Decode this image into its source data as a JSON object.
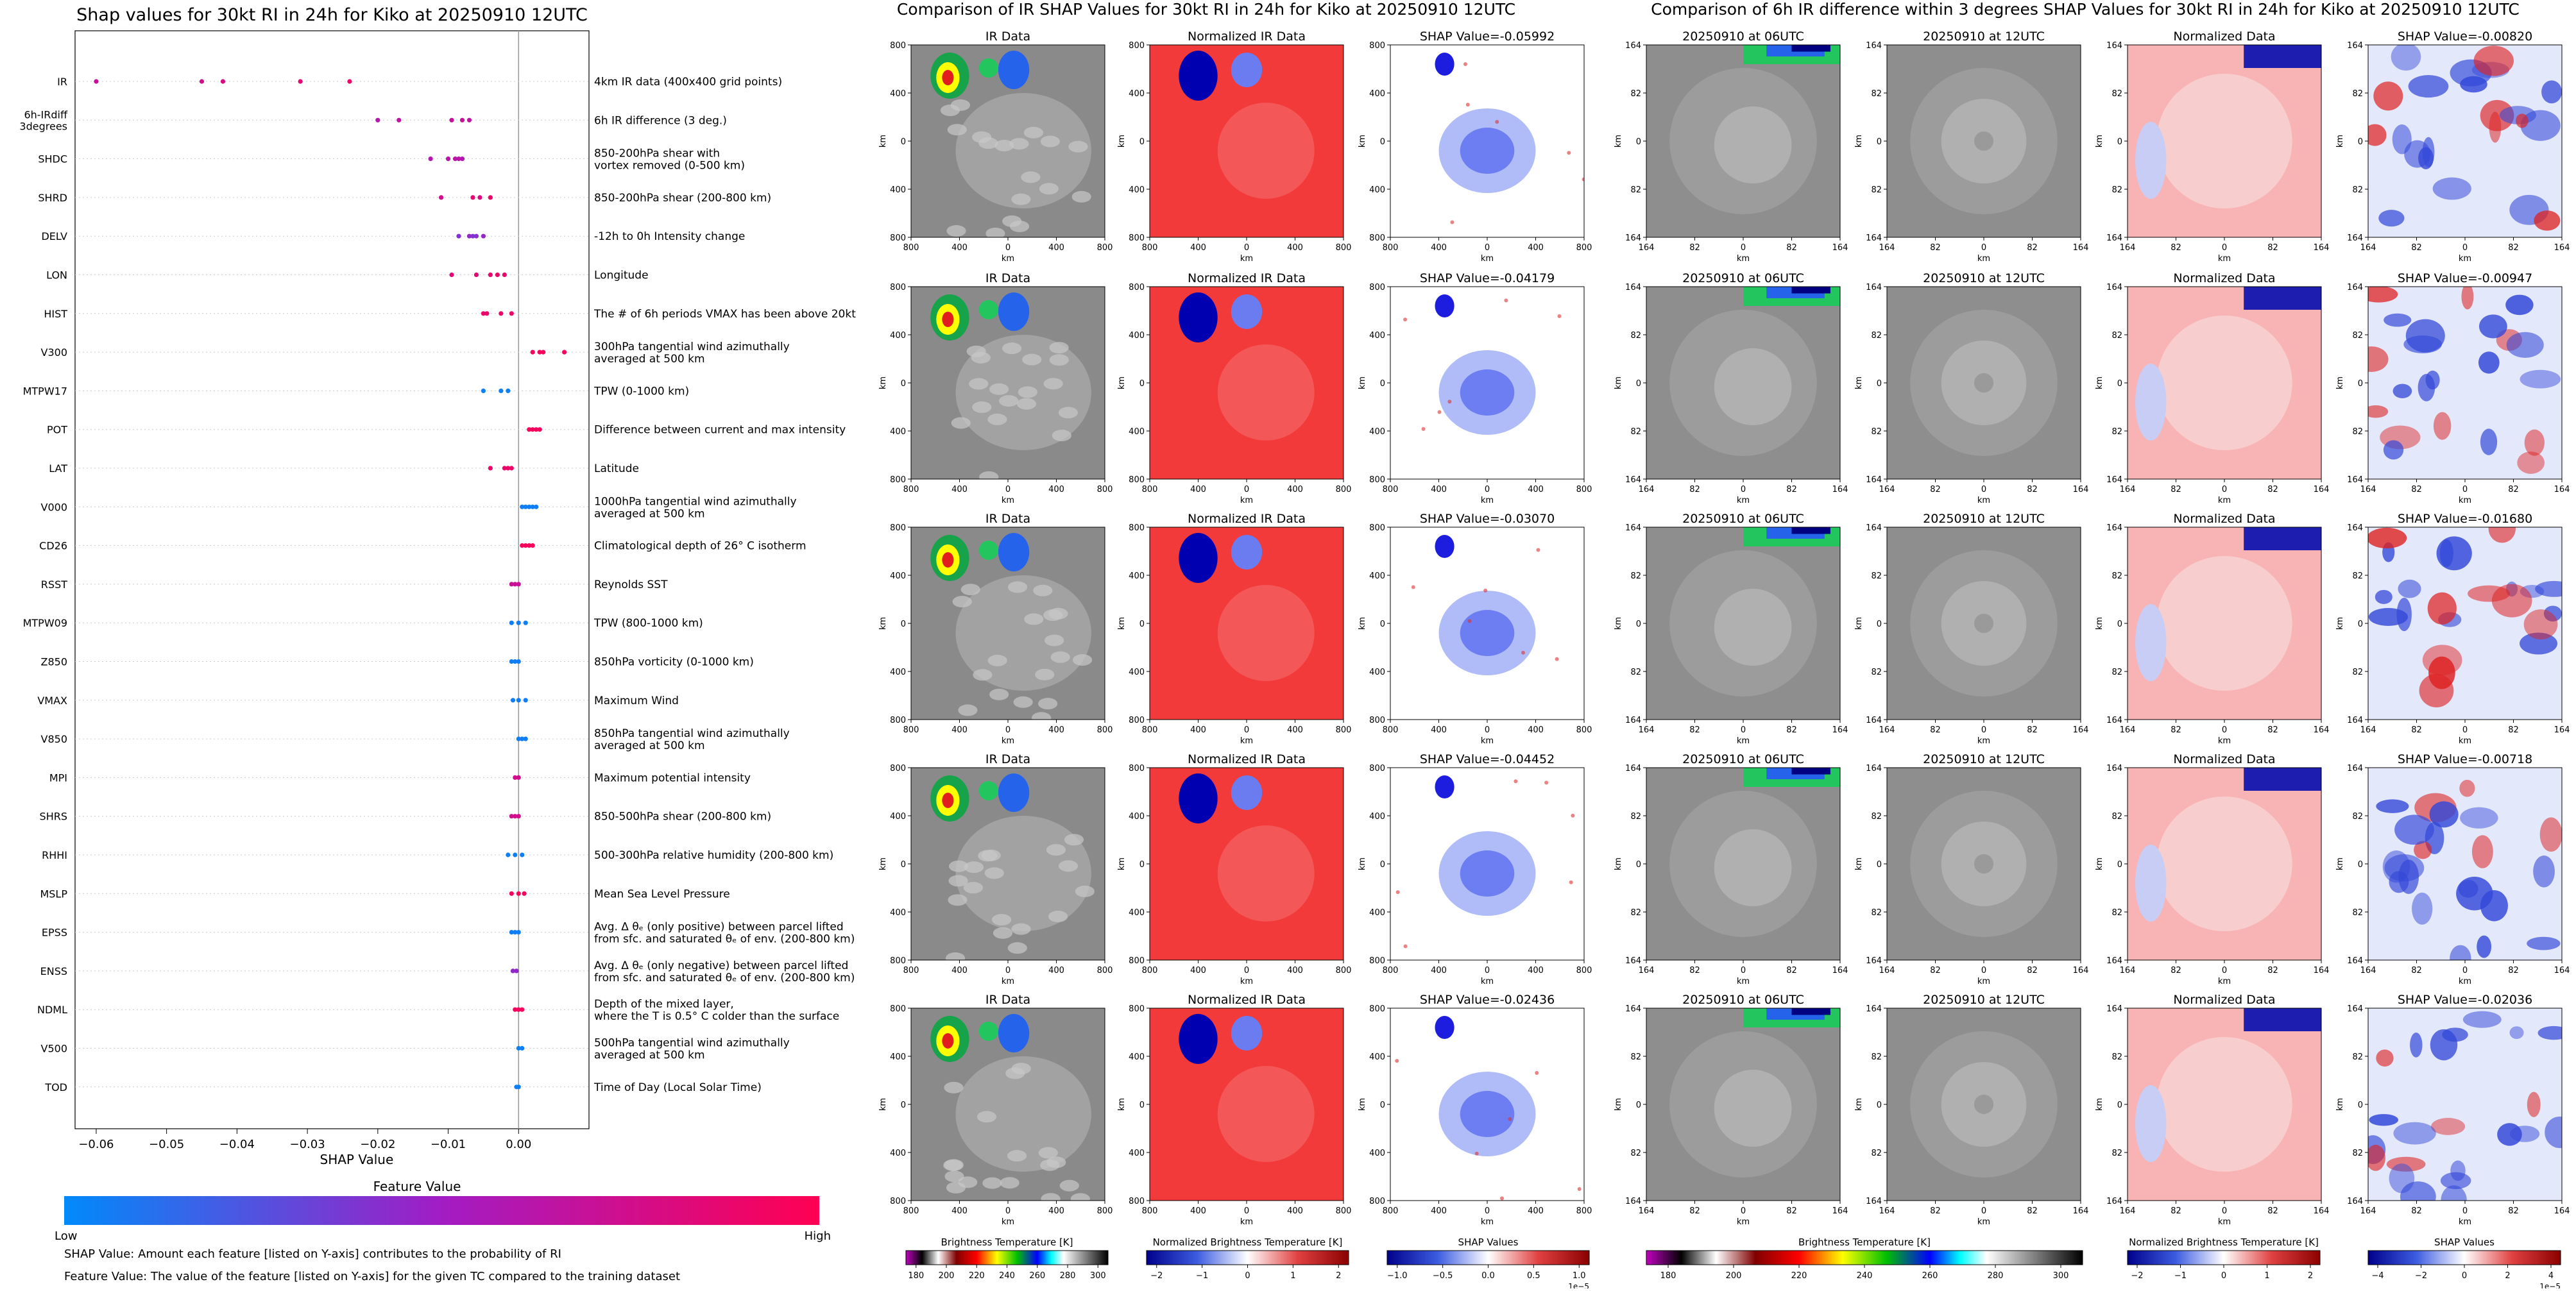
{
  "beeswarm": {
    "title": "Shap values for 30kt RI in 24h for Kiko at 20250910 12UTC",
    "xlabel": "SHAP Value",
    "xticks": [
      "−0.06",
      "−0.05",
      "−0.04",
      "−0.03",
      "−0.02",
      "−0.01",
      "0.00"
    ],
    "colorbar_title": "Feature Value",
    "colorbar_low": "Low",
    "colorbar_high": "High",
    "note1": "SHAP Value: Amount each feature [listed on Y-axis] contributes to the probability of RI",
    "note2": "Feature Value: The value of the feature [listed on Y-axis] for the given TC compared to the training dataset"
  },
  "chart_data": [
    {
      "type": "scatter",
      "title": "Shap values for 30kt RI in 24h for Kiko at 20250910 12UTC",
      "xlabel": "SHAP Value",
      "ylabel": "",
      "xlim": [
        -0.063,
        0.01
      ],
      "grid": false,
      "features": [
        {
          "label": [
            "IR"
          ],
          "desc": [
            "4km IR data (400x400 grid points)"
          ],
          "values": [
            -0.06,
            -0.045,
            -0.042,
            -0.031,
            -0.024
          ],
          "level": [
            0.7,
            0.75,
            0.8,
            0.85,
            0.9
          ]
        },
        {
          "label": [
            "6h-IRdiff",
            "3degrees"
          ],
          "desc": [
            "6h IR difference (3 deg.)"
          ],
          "values": [
            -0.02,
            -0.017,
            -0.0095,
            -0.008,
            -0.007
          ],
          "level": [
            0.6,
            0.65,
            0.7,
            0.7,
            0.65
          ]
        },
        {
          "label": [
            "SHDC"
          ],
          "desc": [
            "850-200hPa shear with",
            "vortex removed (0-500 km)"
          ],
          "values": [
            -0.0125,
            -0.01,
            -0.009,
            -0.0085,
            -0.008
          ],
          "level": [
            0.6,
            0.6,
            0.65,
            0.6,
            0.6
          ]
        },
        {
          "label": [
            "SHRD"
          ],
          "desc": [
            "850-200hPa shear (200-800 km)"
          ],
          "values": [
            -0.011,
            -0.0065,
            -0.0055,
            -0.004
          ],
          "level": [
            0.75,
            0.85,
            0.8,
            0.9
          ]
        },
        {
          "label": [
            "DELV"
          ],
          "desc": [
            "-12h to 0h Intensity change"
          ],
          "values": [
            -0.0085,
            -0.007,
            -0.0065,
            -0.006,
            -0.005
          ],
          "level": [
            0.4,
            0.45,
            0.4,
            0.4,
            0.45
          ]
        },
        {
          "label": [
            "LON"
          ],
          "desc": [
            "Longitude"
          ],
          "values": [
            -0.0095,
            -0.006,
            -0.004,
            -0.003,
            -0.002
          ],
          "level": [
            0.85,
            0.85,
            0.9,
            0.9,
            0.9
          ]
        },
        {
          "label": [
            "HIST"
          ],
          "desc": [
            "The # of 6h periods VMAX has been above 20kt"
          ],
          "values": [
            -0.005,
            -0.0045,
            -0.0025,
            -0.001
          ],
          "level": [
            0.9,
            0.9,
            0.9,
            0.9
          ]
        },
        {
          "label": [
            "V300"
          ],
          "desc": [
            "300hPa tangential wind azimuthally",
            "averaged at 500 km"
          ],
          "values": [
            0.002,
            0.003,
            0.0035,
            0.0065
          ],
          "level": [
            0.95,
            0.95,
            0.95,
            0.95
          ]
        },
        {
          "label": [
            "MTPW17"
          ],
          "desc": [
            "TPW (0-1000 km)"
          ],
          "values": [
            -0.005,
            -0.0025,
            -0.0015
          ],
          "level": [
            0.05,
            0.05,
            0.05
          ]
        },
        {
          "label": [
            "POT"
          ],
          "desc": [
            "Difference between current and max intensity"
          ],
          "values": [
            0.0015,
            0.002,
            0.0025,
            0.003
          ],
          "level": [
            0.95,
            0.95,
            0.95,
            0.95
          ]
        },
        {
          "label": [
            "LAT"
          ],
          "desc": [
            "Latitude"
          ],
          "values": [
            -0.004,
            -0.002,
            -0.0015,
            -0.001
          ],
          "level": [
            0.9,
            0.9,
            0.9,
            0.9
          ]
        },
        {
          "label": [
            "V000"
          ],
          "desc": [
            "1000hPa tangential wind azimuthally",
            "averaged at 500 km"
          ],
          "values": [
            0.0005,
            0.001,
            0.0015,
            0.002,
            0.0025
          ],
          "level": [
            0.05,
            0.05,
            0.05,
            0.05,
            0.05
          ]
        },
        {
          "label": [
            "CD26"
          ],
          "desc": [
            "Climatological depth of 26° C isotherm"
          ],
          "values": [
            0.0005,
            0.001,
            0.0015,
            0.002
          ],
          "level": [
            0.95,
            0.95,
            0.95,
            0.95
          ]
        },
        {
          "label": [
            "RSST"
          ],
          "desc": [
            "Reynolds SST"
          ],
          "values": [
            -0.001,
            -0.0005,
            0.0
          ],
          "level": [
            0.7,
            0.7,
            0.7
          ]
        },
        {
          "label": [
            "MTPW09"
          ],
          "desc": [
            "TPW (800-1000 km)"
          ],
          "values": [
            -0.001,
            0.0,
            0.001
          ],
          "level": [
            0.05,
            0.05,
            0.05
          ]
        },
        {
          "label": [
            "Z850"
          ],
          "desc": [
            "850hPa vorticity (0-1000 km)"
          ],
          "values": [
            -0.001,
            -0.0005,
            0.0
          ],
          "level": [
            0.05,
            0.05,
            0.05
          ]
        },
        {
          "label": [
            "VMAX"
          ],
          "desc": [
            "Maximum Wind"
          ],
          "values": [
            -0.0008,
            0.0,
            0.001
          ],
          "level": [
            0.05,
            0.05,
            0.05
          ]
        },
        {
          "label": [
            "V850"
          ],
          "desc": [
            "850hPa tangential wind azimuthally",
            "averaged at 500 km"
          ],
          "values": [
            0.0,
            0.0005,
            0.001
          ],
          "level": [
            0.05,
            0.05,
            0.05
          ]
        },
        {
          "label": [
            "MPI"
          ],
          "desc": [
            "Maximum potential intensity"
          ],
          "values": [
            -0.0005,
            0.0
          ],
          "level": [
            0.75,
            0.75
          ]
        },
        {
          "label": [
            "SHRS"
          ],
          "desc": [
            "850-500hPa shear (200-800 km)"
          ],
          "values": [
            -0.001,
            -0.0005,
            0.0
          ],
          "level": [
            0.75,
            0.75,
            0.75
          ]
        },
        {
          "label": [
            "RHHI"
          ],
          "desc": [
            "500-300hPa relative humidity (200-800 km)"
          ],
          "values": [
            -0.0015,
            -0.0005,
            0.0005
          ],
          "level": [
            0.05,
            0.05,
            0.05
          ]
        },
        {
          "label": [
            "MSLP"
          ],
          "desc": [
            "Mean Sea Level Pressure"
          ],
          "values": [
            -0.001,
            0.0,
            0.0008
          ],
          "level": [
            0.95,
            0.95,
            0.95
          ]
        },
        {
          "label": [
            "EPSS"
          ],
          "desc": [
            "Avg. Δ θₑ (only positive) between parcel lifted",
            "from sfc. and saturated θₑ of env. (200-800 km)"
          ],
          "values": [
            -0.001,
            -0.0005,
            0.0
          ],
          "level": [
            0.05,
            0.05,
            0.05
          ]
        },
        {
          "label": [
            "ENSS"
          ],
          "desc": [
            "Avg. Δ θₑ (only negative) between parcel lifted",
            "from sfc. and saturated θₑ of env. (200-800 km)"
          ],
          "values": [
            -0.0008,
            -0.0003
          ],
          "level": [
            0.45,
            0.45
          ]
        },
        {
          "label": [
            "NDML"
          ],
          "desc": [
            "Depth of the mixed layer,",
            "where the T is 0.5° C colder than the surface"
          ],
          "values": [
            -0.0005,
            0.0,
            0.0005
          ],
          "level": [
            0.95,
            0.95,
            0.95
          ]
        },
        {
          "label": [
            "V500"
          ],
          "desc": [
            "500hPa tangential wind azimuthally",
            "averaged at 500 km"
          ],
          "values": [
            0.0,
            0.0005
          ],
          "level": [
            0.05,
            0.05
          ]
        },
        {
          "label": [
            "TOD"
          ],
          "desc": [
            "Time of Day (Local Solar Time)"
          ],
          "values": [
            -0.0003,
            0.0
          ],
          "level": [
            0.05,
            0.05
          ]
        }
      ]
    },
    {
      "type": "heatmap",
      "title": "Comparison of IR SHAP Values for 30kt RI in 24h for Kiko at 20250910 12UTC",
      "columns": [
        "IR Data",
        "Normalized IR Data",
        "SHAP"
      ],
      "shap_titles": [
        "SHAP Value=-0.05992",
        "SHAP Value=-0.04179",
        "SHAP Value=-0.03070",
        "SHAP Value=-0.04452",
        "SHAP Value=-0.02436"
      ],
      "xlabel": "km",
      "ylabel": "km",
      "yticks": [
        "800",
        "400",
        "0",
        "400",
        "800"
      ],
      "xticks": [
        "800",
        "400",
        "0",
        "400",
        "800"
      ],
      "colorbars": [
        {
          "label": "Brightness Temperature [K]",
          "ticks": [
            "180",
            "200",
            "220",
            "240",
            "260",
            "280",
            "300"
          ]
        },
        {
          "label": "Normalized Brightness Temperature [K]",
          "ticks": [
            "−2",
            "−1",
            "0",
            "1",
            "2"
          ]
        },
        {
          "label": "SHAP Values",
          "ticks": [
            "−1.0",
            "−0.5",
            "0.0",
            "0.5",
            "1.0"
          ],
          "scale": "1e−5"
        }
      ]
    },
    {
      "type": "heatmap",
      "title": "Comparison of 6h IR difference within 3 degrees SHAP Values for 30kt RI in 24h for Kiko at 20250910 12UTC",
      "columns": [
        "20250910 at 06UTC",
        "20250910 at 12UTC",
        "Normalized Data",
        "SHAP"
      ],
      "shap_titles": [
        "SHAP Value=-0.00820",
        "SHAP Value=-0.00947",
        "SHAP Value=-0.01680",
        "SHAP Value=-0.00718",
        "SHAP Value=-0.02036"
      ],
      "xlabel": "km",
      "ylabel": "km",
      "yticks": [
        "164",
        "82",
        "0",
        "82",
        "164"
      ],
      "xticks": [
        "164",
        "82",
        "0",
        "82",
        "164"
      ],
      "colorbars": [
        {
          "label": "Brightness Temperature [K]",
          "ticks": [
            "180",
            "200",
            "220",
            "240",
            "260",
            "280",
            "300"
          ]
        },
        {
          "label": "Normalized Brightness Temperature [K]",
          "ticks": [
            "−2",
            "−1",
            "0",
            "1",
            "2"
          ]
        },
        {
          "label": "SHAP Values",
          "ticks": [
            "−4",
            "−2",
            "0",
            "2",
            "4"
          ],
          "scale": "1e−5"
        }
      ]
    }
  ],
  "colors": {
    "low": "#008afb",
    "high": "#ff0052",
    "mid": "#a21cc4"
  }
}
